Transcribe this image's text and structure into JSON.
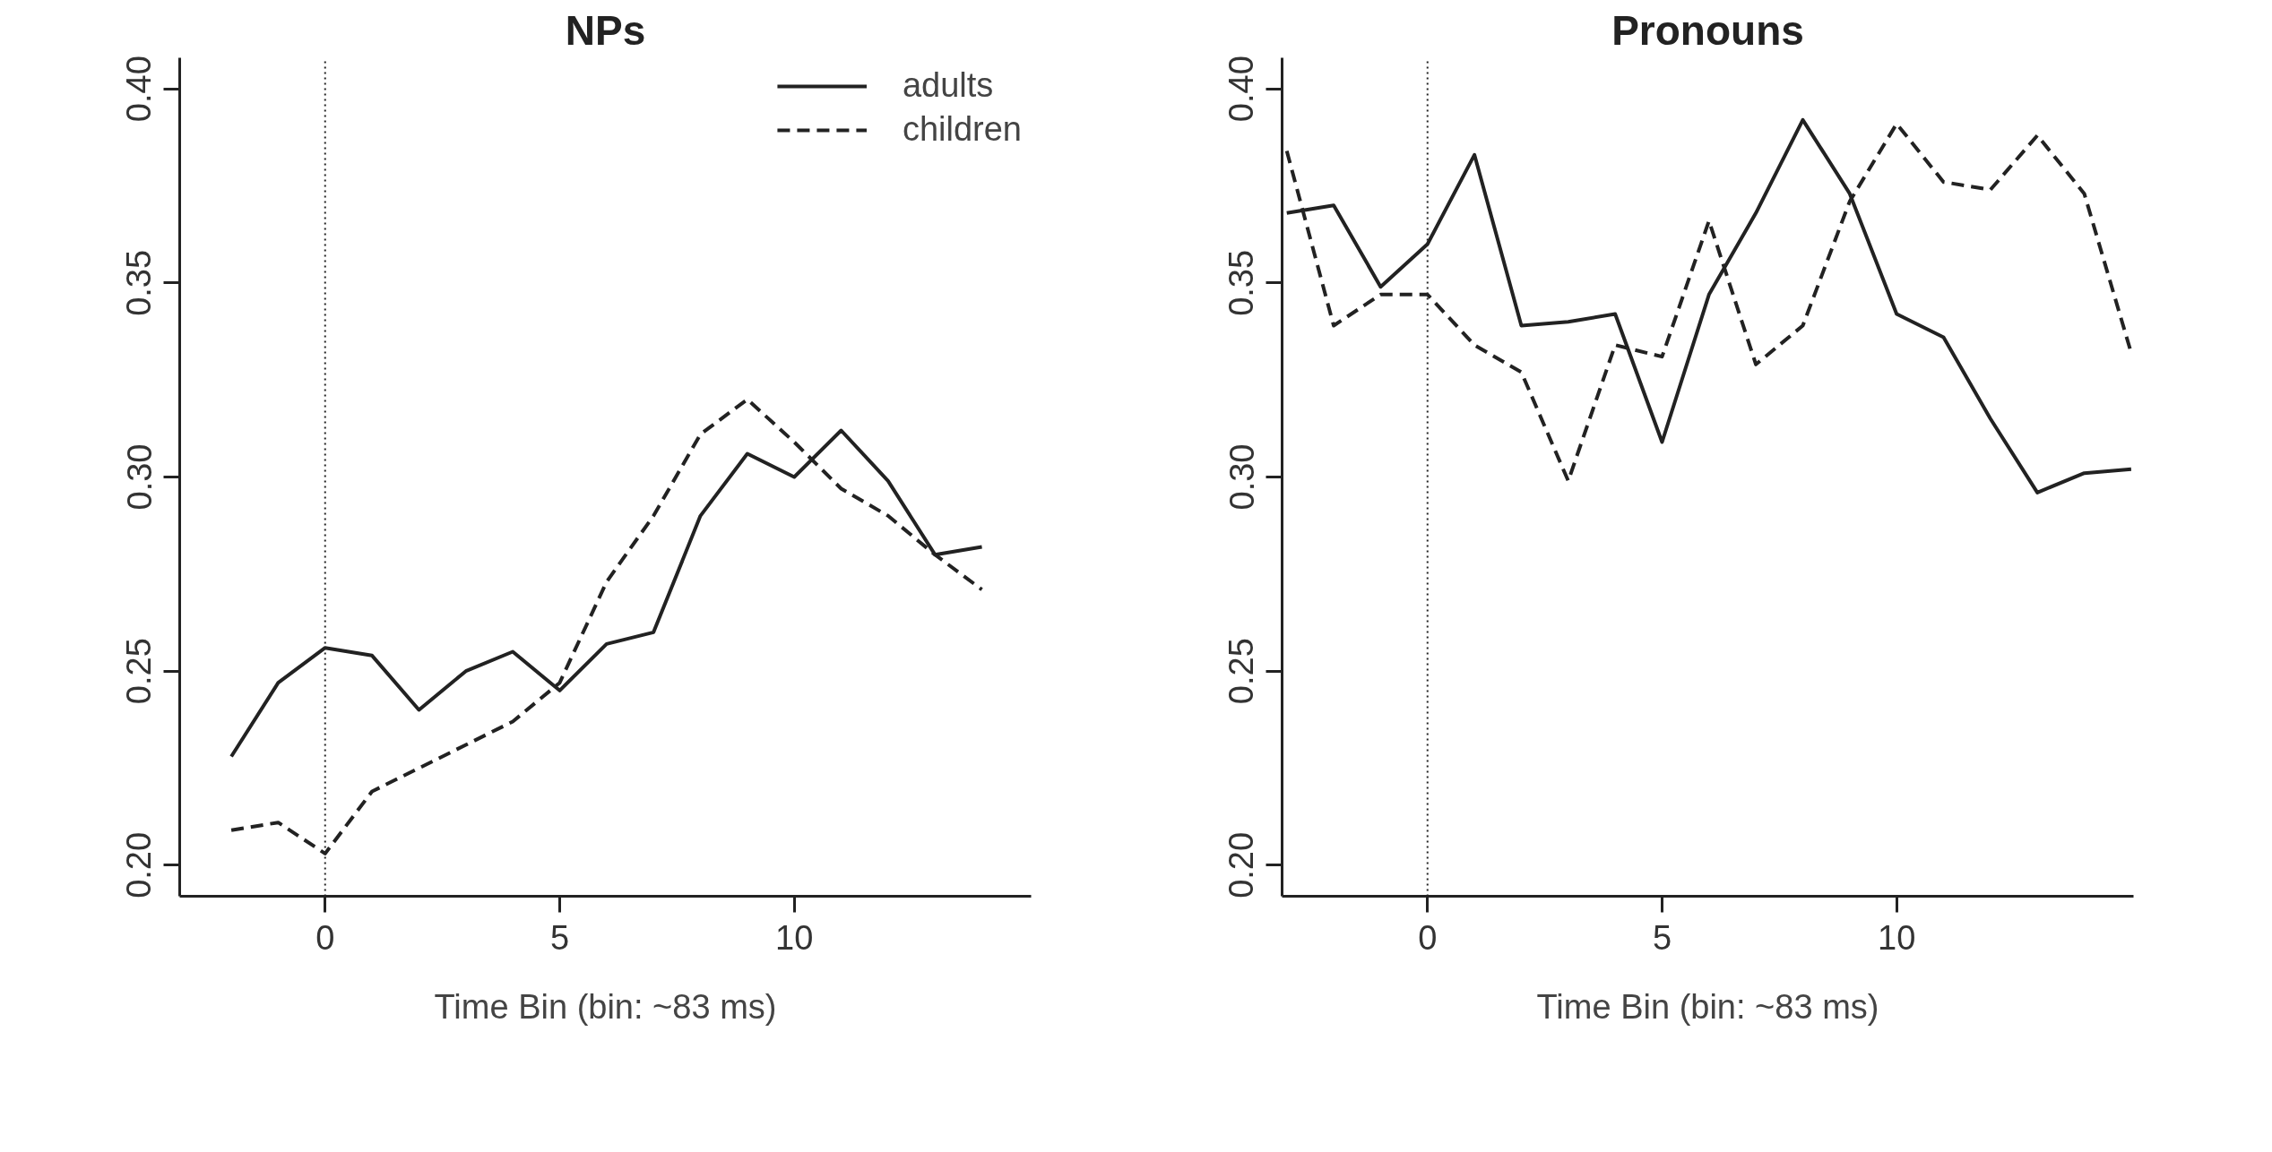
{
  "chart_data": [
    {
      "type": "line",
      "title": "NPs",
      "xlabel": "Time Bin (bin: ~83 ms)",
      "x": [
        -2,
        -1,
        0,
        1,
        2,
        3,
        4,
        5,
        6,
        7,
        8,
        9,
        10,
        11,
        12,
        13,
        14
      ],
      "series": [
        {
          "name": "adults",
          "color": "#222222",
          "line_style": "solid",
          "values": [
            0.228,
            0.247,
            0.256,
            0.254,
            0.24,
            0.25,
            0.255,
            0.245,
            0.257,
            0.26,
            0.29,
            0.306,
            0.3,
            0.312,
            0.299,
            0.28,
            0.282
          ]
        },
        {
          "name": "children",
          "color": "#222222",
          "line_style": "dashed",
          "values": [
            0.209,
            0.211,
            0.203,
            0.219,
            0.225,
            0.231,
            0.237,
            0.247,
            0.273,
            0.29,
            0.311,
            0.32,
            0.309,
            0.297,
            0.29,
            0.28,
            0.271
          ]
        }
      ],
      "xlim": [
        -3.1,
        15.05
      ],
      "ylim": [
        0.192,
        0.408
      ],
      "xticks": [
        0,
        5,
        10
      ],
      "yticks": [
        {
          "value": 0.2,
          "label": "0.20"
        },
        {
          "value": 0.25,
          "label": "0.25"
        },
        {
          "value": 0.3,
          "label": "0.30"
        },
        {
          "value": 0.35,
          "label": "0.35"
        },
        {
          "value": 0.4,
          "label": "0.40"
        }
      ],
      "ref_lines": [
        {
          "axis": "x",
          "value": 0,
          "line_style": "dotted",
          "color": "#222222"
        }
      ],
      "grid": false,
      "legend": "top right"
    },
    {
      "type": "line",
      "title": "Pronouns",
      "xlabel": "Time Bin (bin: ~83 ms)",
      "x": [
        -3,
        -2,
        -1,
        0,
        1,
        2,
        3,
        4,
        5,
        6,
        7,
        8,
        9,
        10,
        11,
        12,
        13,
        14,
        15
      ],
      "series": [
        {
          "color": "#222222",
          "line_style": "solid",
          "values": [
            0.368,
            0.37,
            0.349,
            0.36,
            0.383,
            0.339,
            0.34,
            0.342,
            0.309,
            0.347,
            0.368,
            0.392,
            0.373,
            0.342,
            0.336,
            0.315,
            0.296,
            0.301,
            0.302
          ]
        },
        {
          "color": "#222222",
          "line_style": "dashed",
          "values": [
            0.384,
            0.339,
            0.347,
            0.347,
            0.334,
            0.327,
            0.299,
            0.334,
            0.331,
            0.366,
            0.329,
            0.339,
            0.371,
            0.391,
            0.376,
            0.374,
            0.388,
            0.373,
            0.332
          ]
        }
      ],
      "xlim": [
        -3.1,
        15.05
      ],
      "ylim": [
        0.192,
        0.408
      ],
      "xticks": [
        0,
        5,
        10
      ],
      "yticks": [
        {
          "value": 0.2,
          "label": "0.20"
        },
        {
          "value": 0.25,
          "label": "0.25"
        },
        {
          "value": 0.3,
          "label": "0.30"
        },
        {
          "value": 0.35,
          "label": "0.35"
        },
        {
          "value": 0.4,
          "label": "0.40"
        }
      ],
      "ref_lines": [
        {
          "axis": "x",
          "value": 0,
          "line_style": "dotted",
          "color": "#222222"
        }
      ],
      "grid": false,
      "legend": false
    }
  ]
}
